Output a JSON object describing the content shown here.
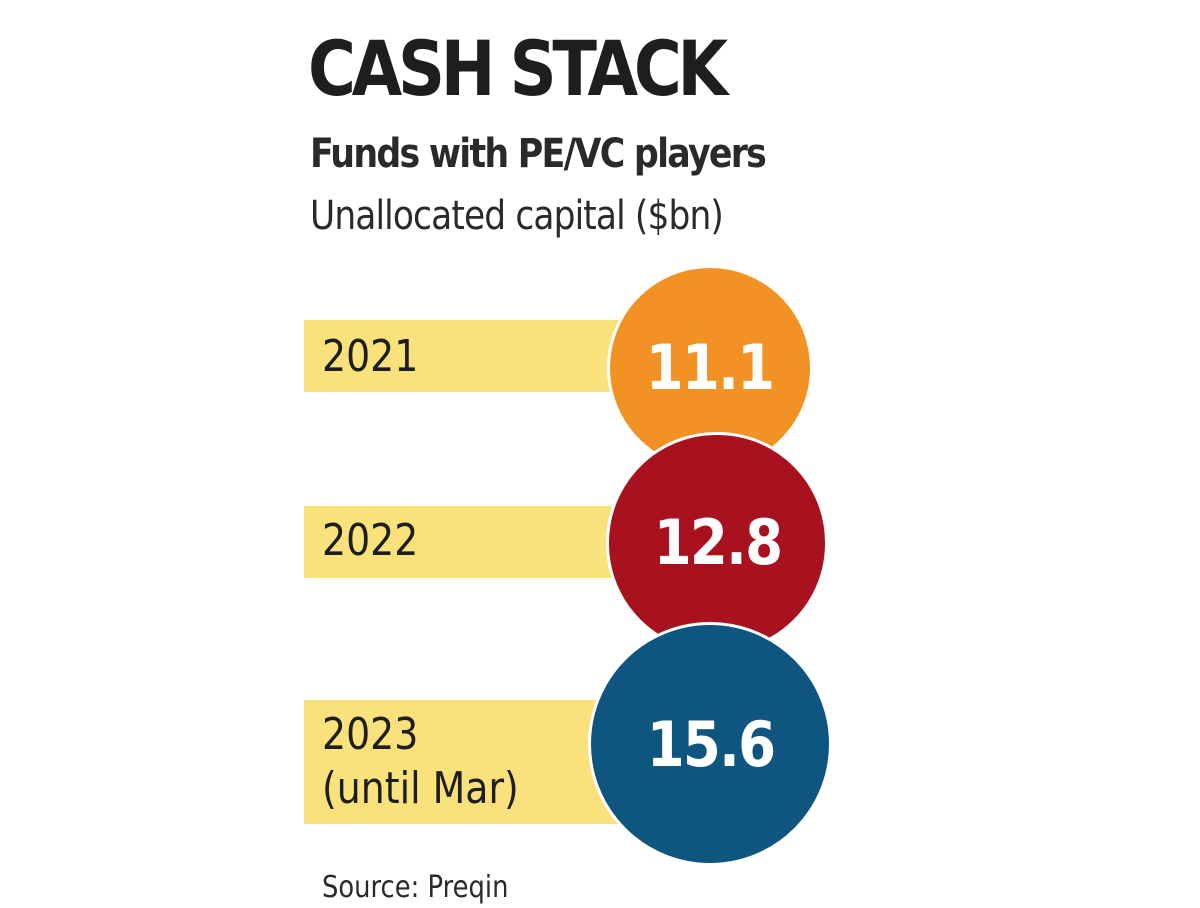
{
  "chart_data": {
    "type": "bubble",
    "title": "CASH STACK",
    "subtitle": "Funds with PE/VC players",
    "ylabel": "Unallocated capital ($bn)",
    "categories": [
      "2021",
      "2022",
      "2023\n(until Mar)"
    ],
    "values": [
      11.1,
      12.8,
      15.6
    ],
    "value_labels": [
      "11.1",
      "12.8",
      "15.6"
    ],
    "colors": [
      "#f39224",
      "#a8121f",
      "#0e5580"
    ],
    "band_color": "#f9e27c",
    "source": "Source: Preqin"
  }
}
